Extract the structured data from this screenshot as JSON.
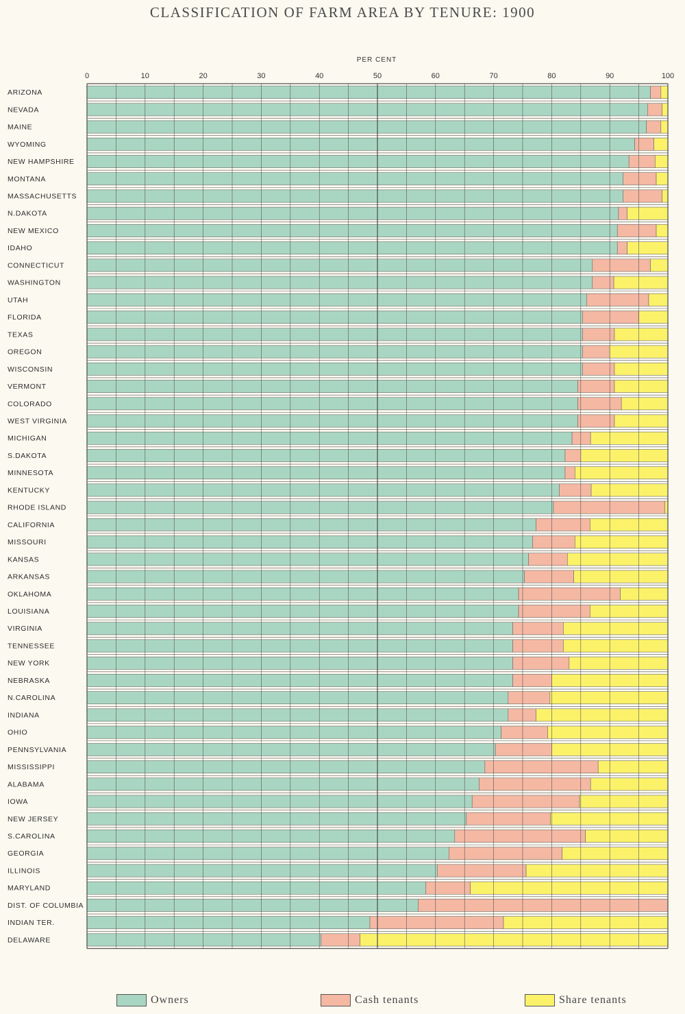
{
  "colors": {
    "owners": "#a9d6c2",
    "cash": "#f5b8a3",
    "share": "#fbf26a",
    "grid": "#555555",
    "background": "#fbf9f0"
  },
  "chart_data": {
    "type": "bar",
    "orientation": "horizontal",
    "stacked": true,
    "title": "CLASSIFICATION OF FARM AREA BY TENURE: 1900",
    "xlabel": "PER CENT",
    "ylabel": "",
    "xlim": [
      0,
      100
    ],
    "xticks": [
      "0",
      "10",
      "20",
      "30",
      "40",
      "50",
      "60",
      "70",
      "80",
      "90",
      "100"
    ],
    "grid": true,
    "legend_position": "bottom",
    "categories": [
      "ARIZONA",
      "NEVADA",
      "MAINE",
      "WYOMING",
      "NEW HAMPSHIRE",
      "MONTANA",
      "MASSACHUSETTS",
      "N.DAKOTA",
      "NEW MEXICO",
      "IDAHO",
      "CONNECTICUT",
      "WASHINGTON",
      "UTAH",
      "FLORIDA",
      "TEXAS",
      "OREGON",
      "WISCONSIN",
      "VERMONT",
      "COLORADO",
      "WEST VIRGINIA",
      "MICHIGAN",
      "S.DAKOTA",
      "MINNESOTA",
      "KENTUCKY",
      "RHODE ISLAND",
      "CALIFORNIA",
      "MISSOURI",
      "KANSAS",
      "ARKANSAS",
      "OKLAHOMA",
      "LOUISIANA",
      "VIRGINIA",
      "TENNESSEE",
      "NEW YORK",
      "NEBRASKA",
      "N.CAROLINA",
      "INDIANA",
      "OHIO",
      "PENNSYLVANIA",
      "MISSISSIPPI",
      "ALABAMA",
      "IOWA",
      "NEW JERSEY",
      "S.CAROLINA",
      "GEORGIA",
      "ILLINOIS",
      "MARYLAND",
      "DIST. OF COLUMBIA",
      "INDIAN TER.",
      "DELAWARE"
    ],
    "series": [
      {
        "name": "Owners",
        "values": [
          97,
          96.5,
          96.3,
          94.3,
          93.3,
          92.3,
          92.3,
          91.5,
          91.3,
          91.3,
          87,
          87,
          86,
          85.3,
          85.3,
          85.3,
          85.3,
          84.5,
          84.5,
          84.5,
          83.5,
          82.3,
          82.3,
          81.3,
          80.3,
          77.3,
          76.7,
          76,
          75.3,
          74.3,
          74.3,
          73.3,
          73.3,
          73.3,
          73.3,
          72.5,
          72.5,
          71.3,
          70.3,
          68.5,
          67.5,
          66.3,
          65.3,
          63.3,
          62.3,
          60.3,
          58.3,
          57,
          48.7,
          40.3
        ]
      },
      {
        "name": "Cash tenants",
        "values": [
          1.8,
          2.5,
          2.5,
          3.3,
          4.5,
          5.7,
          6.7,
          1.5,
          6.7,
          1.7,
          10,
          3.7,
          10.7,
          9.7,
          5.5,
          4.7,
          5.5,
          6.3,
          7.5,
          6.3,
          3.2,
          2.7,
          1.7,
          5.5,
          19.2,
          9.3,
          7.3,
          6.7,
          8.5,
          17.5,
          12.3,
          8.7,
          8.7,
          9.7,
          6.7,
          7.2,
          4.8,
          8,
          9.7,
          19.5,
          19.2,
          18.5,
          14.5,
          22.5,
          19.5,
          15.3,
          7.7,
          43,
          23,
          6.7
        ]
      },
      {
        "name": "Share tenants",
        "values": [
          1.2,
          1,
          1.2,
          2.4,
          2.2,
          2,
          1,
          7,
          2,
          7,
          3,
          9.3,
          3.3,
          5,
          9.2,
          10,
          9.2,
          9.2,
          8,
          9.2,
          13.3,
          15,
          16,
          13.2,
          0.5,
          13.4,
          16,
          17.3,
          16.2,
          8.2,
          13.4,
          18,
          18,
          17,
          20,
          20.3,
          22.7,
          20.7,
          20,
          12,
          13.3,
          15.2,
          20.2,
          14.2,
          18.2,
          24.4,
          34,
          0,
          28.3,
          53
        ]
      }
    ]
  },
  "legend": {
    "owners": "Owners",
    "cash": "Cash tenants",
    "share": "Share tenants"
  }
}
